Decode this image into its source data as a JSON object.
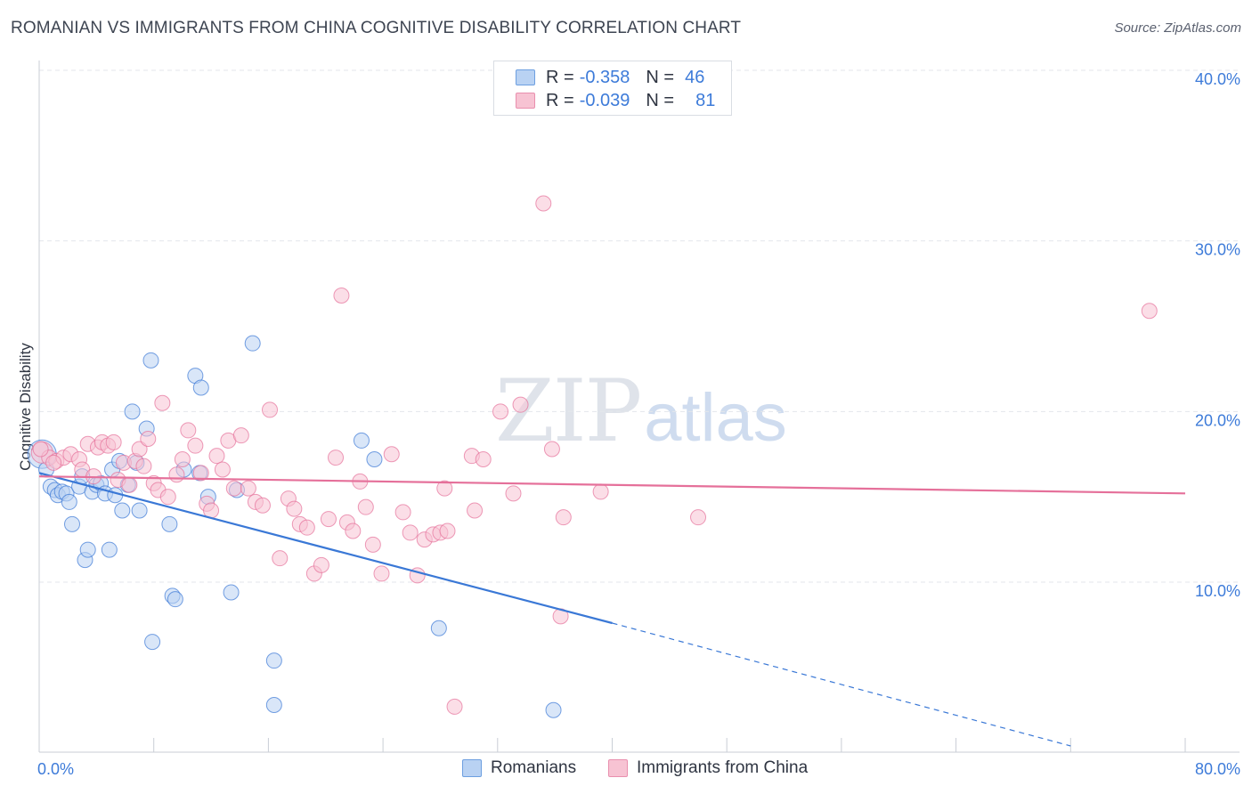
{
  "header": {
    "title": "ROMANIAN VS IMMIGRANTS FROM CHINA COGNITIVE DISABILITY CORRELATION CHART",
    "source": "Source: ZipAtlas.com"
  },
  "watermark": {
    "zip": "ZIP",
    "atlas": "atlas"
  },
  "legend": {
    "series1": {
      "r_label": "R =",
      "r_value": "-0.358",
      "n_label": "N =",
      "n_value": "46"
    },
    "series2": {
      "r_label": "R =",
      "r_value": "-0.039",
      "n_label": "N =",
      "n_value": "81"
    }
  },
  "colors": {
    "blue": "#3a78d6",
    "blue_fill": "#b9d2f3",
    "pink": "#e5709a",
    "pink_fill": "#f7c3d3",
    "grid": "#e3e6eb",
    "tick_label": "#3d7bd9"
  },
  "chart_data": {
    "type": "scatter",
    "title": "ROMANIAN VS IMMIGRANTS FROM CHINA COGNITIVE DISABILITY CORRELATION CHART",
    "xlabel": "",
    "ylabel": "Cognitive Disability",
    "xlim": [
      0,
      80
    ],
    "ylim": [
      0,
      42
    ],
    "x_tick_labels": [
      {
        "value": 0,
        "label": "0.0%"
      },
      {
        "value": 80,
        "label": "80.0%"
      }
    ],
    "x_minor_ticks": [
      0,
      8,
      16,
      24,
      32,
      40,
      48,
      56,
      64,
      72,
      80
    ],
    "y_ticks": [
      {
        "value": 10,
        "label": "10.0%"
      },
      {
        "value": 20,
        "label": "20.0%"
      },
      {
        "value": 30,
        "label": "30.0%"
      },
      {
        "value": 40,
        "label": "40.0%"
      }
    ],
    "series": [
      {
        "name": "Romanians",
        "color": "#3a78d6",
        "fill": "#b9d2f3",
        "points": [
          [
            0.2,
            17.5
          ],
          [
            0.5,
            16.6
          ],
          [
            0.8,
            15.6
          ],
          [
            1.1,
            15.4
          ],
          [
            1.3,
            15.1
          ],
          [
            1.6,
            15.3
          ],
          [
            1.9,
            15.2
          ],
          [
            2.1,
            14.7
          ],
          [
            2.3,
            13.4
          ],
          [
            2.8,
            15.6
          ],
          [
            3.0,
            16.2
          ],
          [
            3.2,
            11.3
          ],
          [
            3.4,
            11.9
          ],
          [
            3.7,
            15.3
          ],
          [
            4.0,
            15.7
          ],
          [
            4.3,
            15.8
          ],
          [
            4.6,
            15.2
          ],
          [
            4.9,
            11.9
          ],
          [
            5.1,
            16.6
          ],
          [
            5.3,
            15.1
          ],
          [
            5.6,
            17.1
          ],
          [
            5.8,
            14.2
          ],
          [
            6.2,
            15.7
          ],
          [
            6.5,
            20.0
          ],
          [
            6.8,
            17.0
          ],
          [
            7.0,
            14.2
          ],
          [
            7.5,
            19.0
          ],
          [
            7.8,
            23.0
          ],
          [
            7.9,
            6.5
          ],
          [
            9.1,
            13.4
          ],
          [
            9.3,
            9.2
          ],
          [
            9.5,
            9.0
          ],
          [
            10.1,
            16.6
          ],
          [
            10.9,
            22.1
          ],
          [
            11.3,
            21.4
          ],
          [
            11.2,
            16.4
          ],
          [
            11.8,
            15.0
          ],
          [
            13.4,
            9.4
          ],
          [
            13.8,
            15.4
          ],
          [
            14.9,
            24.0
          ],
          [
            16.4,
            5.4
          ],
          [
            16.4,
            2.8
          ],
          [
            22.5,
            18.3
          ],
          [
            23.4,
            17.2
          ],
          [
            27.9,
            7.3
          ],
          [
            35.9,
            2.5
          ]
        ]
      },
      {
        "name": "Immigrants from China",
        "color": "#e5709a",
        "fill": "#f7c3d3",
        "points": [
          [
            0.2,
            17.6
          ],
          [
            0.7,
            17.3
          ],
          [
            1.2,
            17.1
          ],
          [
            1.7,
            17.3
          ],
          [
            2.2,
            17.5
          ],
          [
            2.8,
            17.2
          ],
          [
            3.0,
            16.6
          ],
          [
            3.4,
            18.1
          ],
          [
            3.8,
            16.2
          ],
          [
            4.1,
            17.9
          ],
          [
            4.4,
            18.2
          ],
          [
            4.8,
            18.0
          ],
          [
            5.2,
            18.2
          ],
          [
            5.5,
            16.0
          ],
          [
            5.9,
            17.0
          ],
          [
            6.3,
            15.7
          ],
          [
            6.7,
            17.1
          ],
          [
            7.0,
            17.8
          ],
          [
            7.3,
            16.8
          ],
          [
            7.6,
            18.4
          ],
          [
            8.0,
            15.8
          ],
          [
            8.3,
            15.4
          ],
          [
            8.6,
            20.5
          ],
          [
            9.0,
            15.0
          ],
          [
            9.6,
            16.3
          ],
          [
            10.0,
            17.2
          ],
          [
            10.4,
            18.9
          ],
          [
            10.9,
            18.0
          ],
          [
            11.3,
            16.4
          ],
          [
            11.7,
            14.6
          ],
          [
            12.0,
            14.2
          ],
          [
            12.4,
            17.4
          ],
          [
            12.8,
            16.6
          ],
          [
            13.2,
            18.3
          ],
          [
            13.6,
            15.5
          ],
          [
            14.1,
            18.6
          ],
          [
            14.6,
            15.5
          ],
          [
            15.1,
            14.7
          ],
          [
            15.6,
            14.5
          ],
          [
            16.1,
            20.1
          ],
          [
            16.8,
            11.4
          ],
          [
            17.4,
            14.9
          ],
          [
            17.8,
            14.3
          ],
          [
            18.2,
            13.4
          ],
          [
            18.7,
            13.2
          ],
          [
            19.2,
            10.5
          ],
          [
            19.7,
            11.0
          ],
          [
            20.2,
            13.7
          ],
          [
            20.7,
            17.3
          ],
          [
            21.1,
            26.8
          ],
          [
            21.5,
            13.5
          ],
          [
            21.9,
            13.0
          ],
          [
            22.4,
            15.9
          ],
          [
            22.8,
            14.4
          ],
          [
            23.3,
            12.2
          ],
          [
            23.9,
            10.5
          ],
          [
            24.6,
            17.5
          ],
          [
            25.4,
            14.1
          ],
          [
            25.9,
            12.9
          ],
          [
            26.4,
            10.4
          ],
          [
            26.9,
            12.5
          ],
          [
            27.5,
            12.8
          ],
          [
            28.0,
            12.9
          ],
          [
            28.5,
            13.0
          ],
          [
            28.3,
            15.5
          ],
          [
            29.0,
            2.7
          ],
          [
            30.2,
            17.4
          ],
          [
            30.4,
            14.2
          ],
          [
            31.0,
            17.2
          ],
          [
            32.2,
            20.0
          ],
          [
            33.1,
            15.2
          ],
          [
            33.6,
            20.4
          ],
          [
            35.2,
            32.2
          ],
          [
            35.8,
            17.8
          ],
          [
            36.4,
            8.0
          ],
          [
            36.6,
            13.8
          ],
          [
            39.2,
            15.3
          ],
          [
            46.0,
            13.8
          ],
          [
            77.5,
            25.9
          ],
          [
            0.1,
            17.8
          ],
          [
            1.0,
            17.0
          ]
        ]
      }
    ],
    "trend_lines": [
      {
        "series": "Romanians",
        "x": [
          0,
          40
        ],
        "y": [
          16.4,
          7.6
        ],
        "dashed_to": [
          72,
          0.4
        ]
      },
      {
        "series": "Immigrants from China",
        "x": [
          0,
          80
        ],
        "y": [
          16.2,
          15.2
        ]
      }
    ],
    "legend_bottom": [
      "Romanians",
      "Immigrants from China"
    ]
  }
}
